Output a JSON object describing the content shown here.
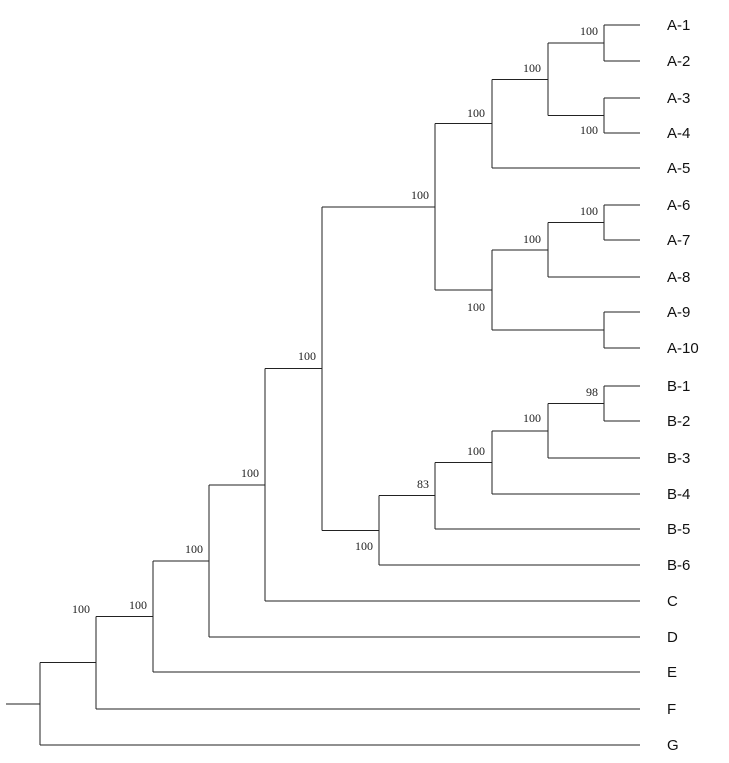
{
  "tree": {
    "leaves": [
      "A-1",
      "A-2",
      "A-3",
      "A-4",
      "A-5",
      "A-6",
      "A-7",
      "A-8",
      "A-9",
      "A-10",
      "B-1",
      "B-2",
      "B-3",
      "B-4",
      "B-5",
      "B-6",
      "C",
      "D",
      "E",
      "F",
      "G"
    ],
    "supports": {
      "A1_A2": "100",
      "A3_A4": "100",
      "A1_A4": "100",
      "A1_A5": "100",
      "A6_A7": "100",
      "A6_A8": "100",
      "A6_A10": "100",
      "A_clade": "100",
      "B1_B2": "98",
      "B1_B3": "100",
      "B1_B4": "100",
      "B1_B5": "83",
      "B_clade": "100",
      "A_B": "100",
      "AB_C": "100",
      "ABC_D": "100",
      "ABCD_E": "100",
      "ABCDE_F": "100"
    }
  }
}
